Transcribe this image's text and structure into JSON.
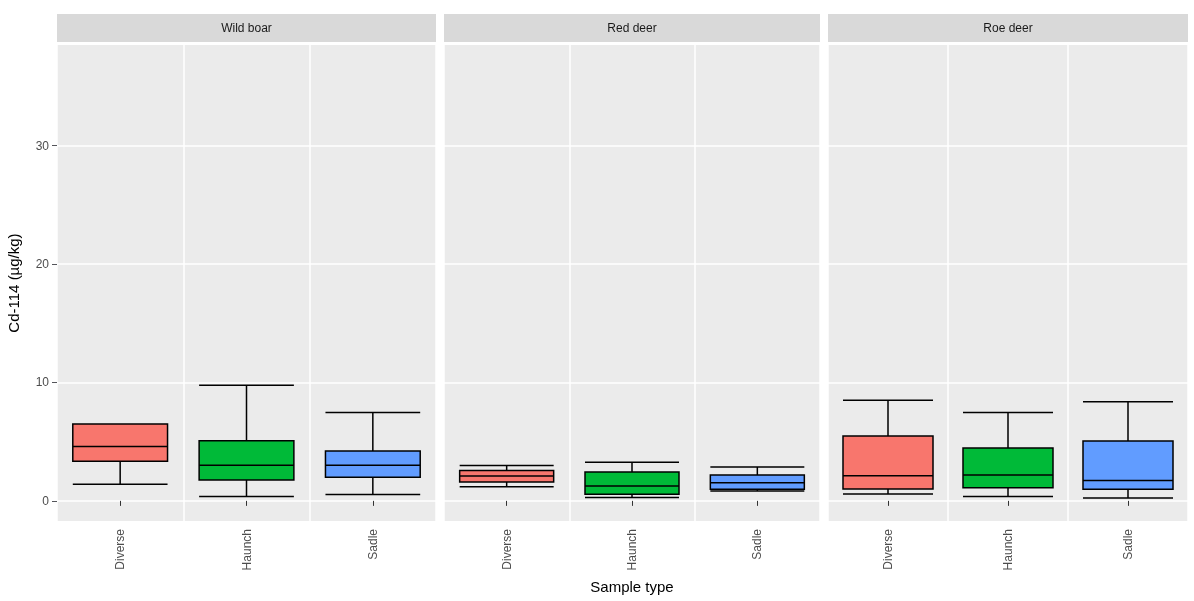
{
  "chart_data": [
    {
      "type": "box",
      "title": "Wild boar",
      "ylabel": "Cd-114 (µg/kg)",
      "categories": [
        "Diverse",
        "Haunch",
        "Sadle"
      ],
      "colors": [
        "#f8766d",
        "#00ba38",
        "#619cff"
      ],
      "boxes": [
        {
          "low": 1.4,
          "q1": 3.35,
          "median": 4.6,
          "q3": 6.5,
          "high": 6.5
        },
        {
          "low": 0.36,
          "q1": 1.76,
          "median": 3.0,
          "q3": 5.08,
          "high": 9.77
        },
        {
          "low": 0.53,
          "q1": 2.0,
          "median": 3.0,
          "q3": 4.21,
          "high": 7.47
        }
      ],
      "ylim": [
        -1.7,
        38.5
      ],
      "yticks": [
        0,
        10,
        20,
        30
      ],
      "grid": true
    },
    {
      "type": "box",
      "title": "Red deer",
      "xlabel": "Sample type",
      "categories": [
        "Diverse",
        "Haunch",
        "Sadle"
      ],
      "colors": [
        "#f8766d",
        "#00ba38",
        "#619cff"
      ],
      "boxes": [
        {
          "low": 1.2,
          "q1": 1.59,
          "median": 2.09,
          "q3": 2.57,
          "high": 2.99
        },
        {
          "low": 0.28,
          "q1": 0.56,
          "median": 1.26,
          "q3": 2.43,
          "high": 3.26
        },
        {
          "low": 0.84,
          "q1": 0.98,
          "median": 1.53,
          "q3": 2.18,
          "high": 2.85
        }
      ],
      "ylim": [
        -1.7,
        38.5
      ],
      "yticks": [
        0,
        10,
        20,
        30
      ],
      "grid": true,
      "tick_labels": "x"
    },
    {
      "type": "box",
      "title": "Roe deer",
      "categories": [
        "Diverse",
        "Haunch",
        "Sadle"
      ],
      "colors": [
        "#f8766d",
        "#00ba38",
        "#619cff"
      ],
      "boxes": [
        {
          "low": 0.59,
          "q1": 1.0,
          "median": 2.12,
          "q3": 5.47,
          "high": 8.5
        },
        {
          "low": 0.36,
          "q1": 1.11,
          "median": 2.18,
          "q3": 4.46,
          "high": 7.47
        },
        {
          "low": 0.25,
          "q1": 0.98,
          "median": 1.73,
          "q3": 5.05,
          "high": 8.37
        }
      ],
      "ylim": [
        -1.7,
        38.5
      ],
      "yticks": [
        0,
        10,
        20,
        30
      ],
      "grid": true,
      "tick_labels": "x"
    }
  ]
}
